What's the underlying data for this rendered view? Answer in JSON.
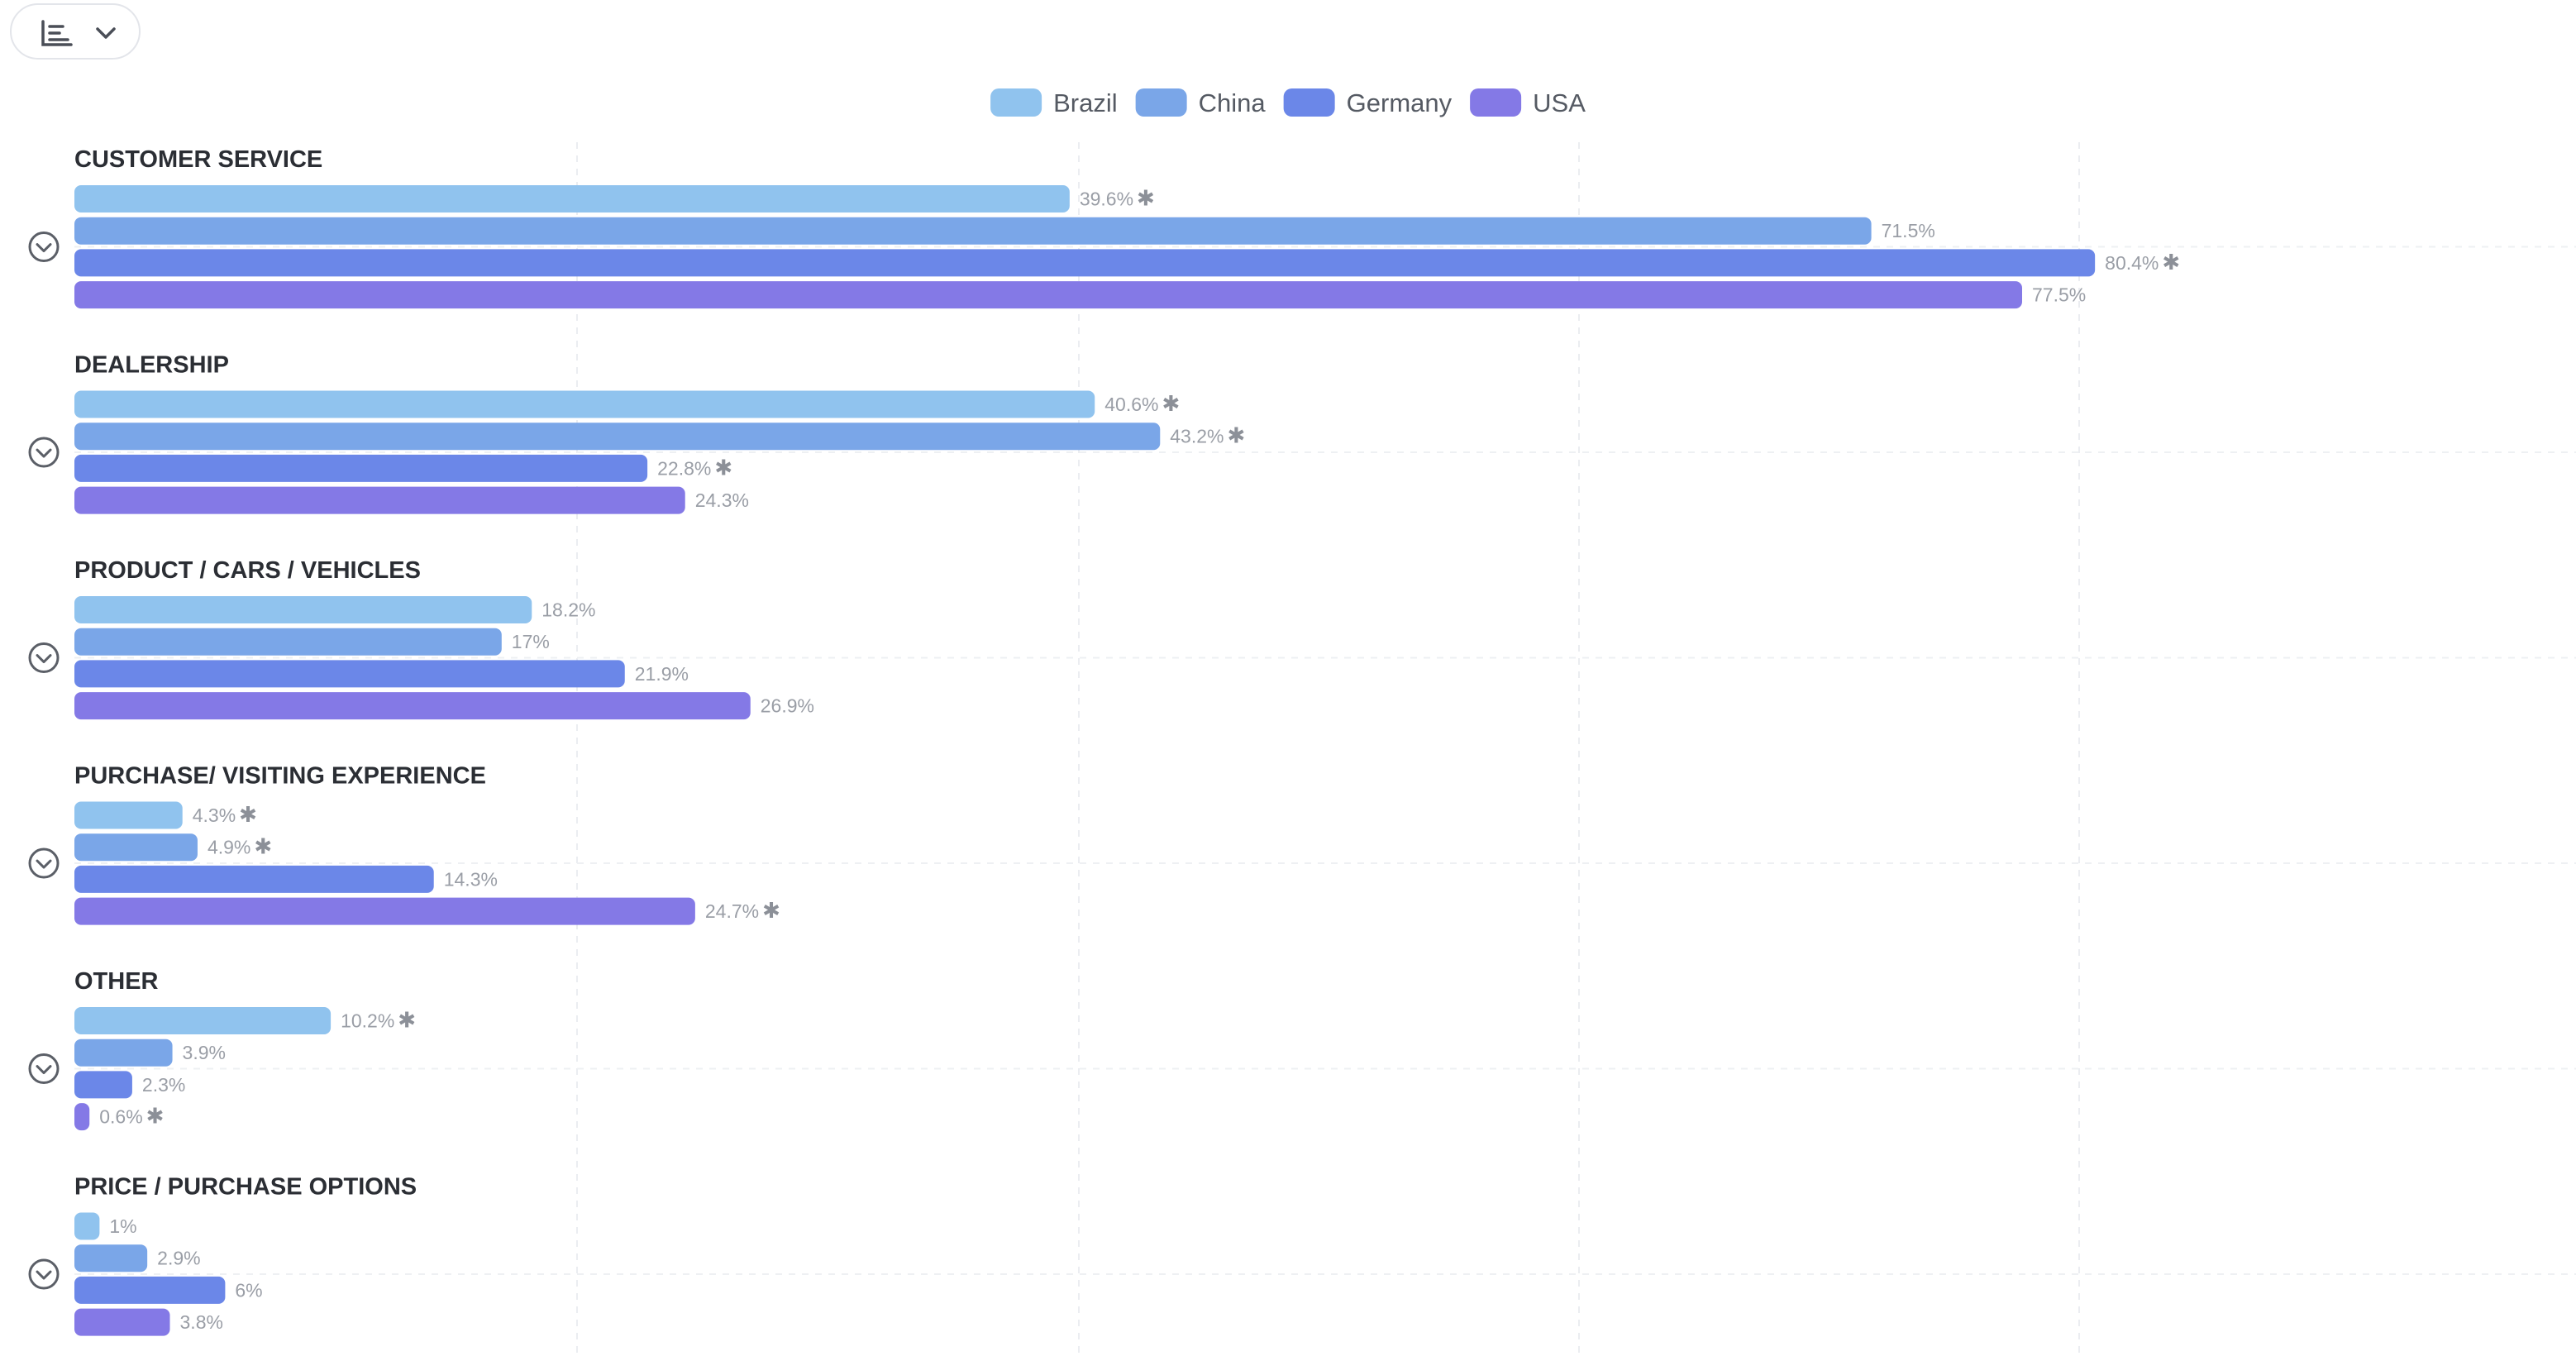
{
  "toolbar": {
    "chart_type_icon": "horizontal-bar-chart-icon",
    "dropdown_icon": "chevron-down-icon"
  },
  "chart_data": {
    "type": "bar",
    "orientation": "horizontal",
    "title": "",
    "xlabel": "",
    "ylabel": "",
    "xlim": [
      0,
      100
    ],
    "grid": true,
    "legend_position": "top-center",
    "value_suffix": "%",
    "significance_marker": "✱",
    "category_toggle_icon": "chevron-down-circle-icon",
    "categories": [
      "CUSTOMER SERVICE",
      "DEALERSHIP",
      "PRODUCT / CARS / VEHICLES",
      "PURCHASE/ VISITING EXPERIENCE",
      "OTHER",
      "PRICE / PURCHASE OPTIONS"
    ],
    "series": [
      {
        "name": "Brazil",
        "color": "#90c3ee",
        "values": [
          39.6,
          40.6,
          18.2,
          4.3,
          10.2,
          1
        ],
        "labels": [
          "39.6%",
          "40.6%",
          "18.2%",
          "4.3%",
          "10.2%",
          "1%"
        ],
        "significant": [
          true,
          true,
          false,
          true,
          true,
          false
        ]
      },
      {
        "name": "China",
        "color": "#7aa6e8",
        "values": [
          71.5,
          43.2,
          17,
          4.9,
          3.9,
          2.9
        ],
        "labels": [
          "71.5%",
          "43.2%",
          "17%",
          "4.9%",
          "3.9%",
          "2.9%"
        ],
        "significant": [
          false,
          true,
          false,
          true,
          false,
          false
        ]
      },
      {
        "name": "Germany",
        "color": "#6b87e8",
        "values": [
          80.4,
          22.8,
          21.9,
          14.3,
          2.3,
          6
        ],
        "labels": [
          "80.4%",
          "22.8%",
          "21.9%",
          "14.3%",
          "2.3%",
          "6%"
        ],
        "significant": [
          true,
          true,
          false,
          false,
          false,
          false
        ]
      },
      {
        "name": "USA",
        "color": "#8479e6",
        "values": [
          77.5,
          24.3,
          26.9,
          24.7,
          0.6,
          3.8
        ],
        "labels": [
          "77.5%",
          "24.3%",
          "26.9%",
          "24.7%",
          "0.6%",
          "3.8%"
        ],
        "significant": [
          false,
          false,
          false,
          true,
          true,
          false
        ]
      }
    ]
  }
}
